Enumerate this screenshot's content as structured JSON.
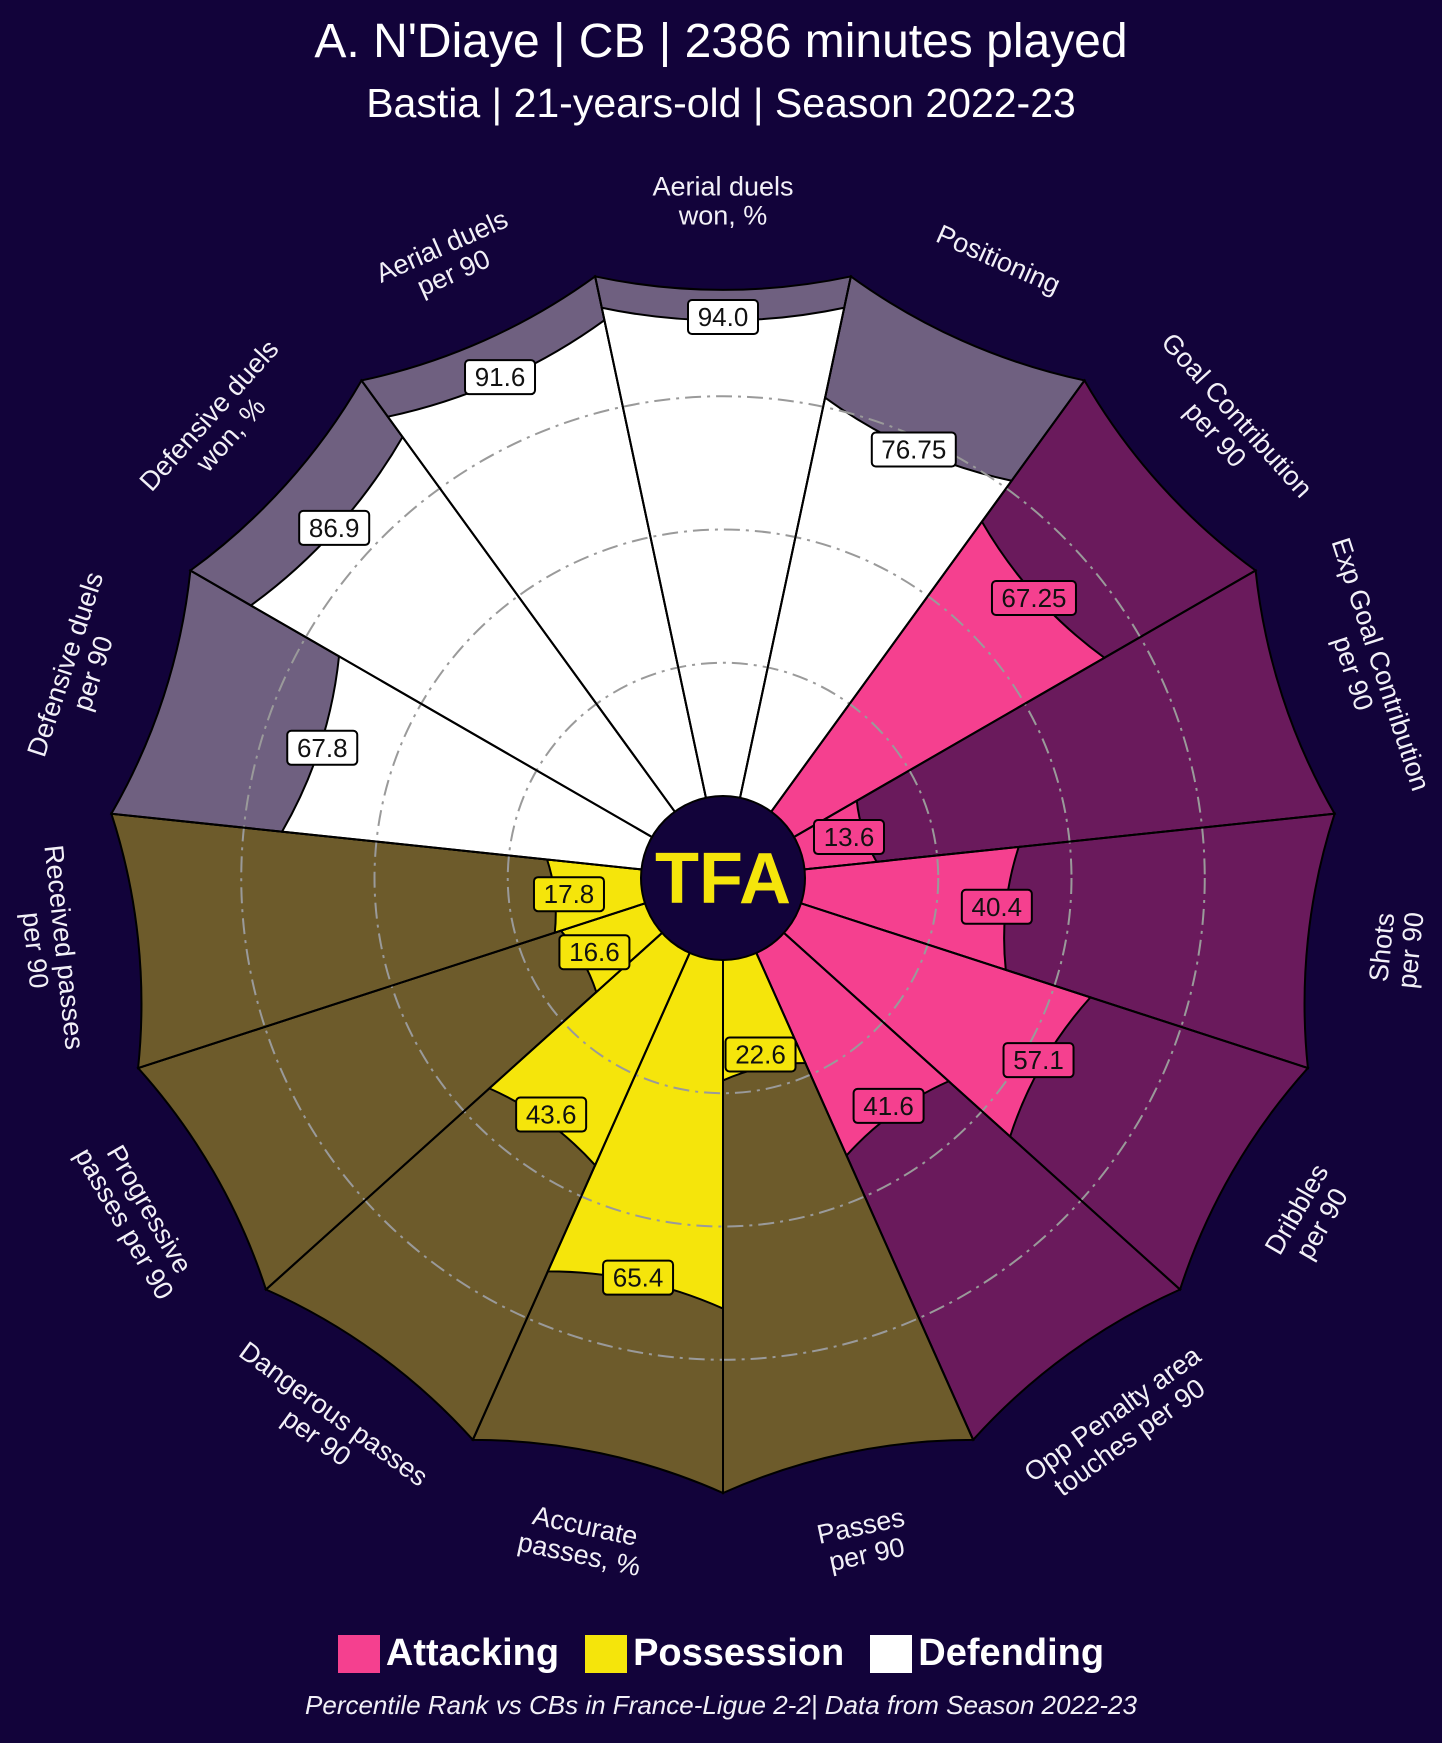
{
  "title": "A. N'Diaye | CB | 2386 minutes played",
  "subtitle": "Bastia | 21-years-old | Season 2022-23",
  "logo_text": "TFA",
  "footnote": "Percentile Rank vs CBs in France-Ligue 2-2| Data from Season 2022-23",
  "colors": {
    "background": "#12033a",
    "attacking": "#f5408f",
    "attacking_bg": "#6a1a5c",
    "possession": "#f5e50b",
    "possession_bg": "#6d5b2b",
    "defending": "#ffffff",
    "defending_bg": "#6f6080",
    "logo_bg": "#12033a",
    "logo_text": "#f5e50b"
  },
  "legend": [
    {
      "label": "Attacking",
      "color": "#f5408f"
    },
    {
      "label": "Possession",
      "color": "#f5e50b"
    },
    {
      "label": "Defending",
      "color": "#ffffff"
    }
  ],
  "chart_data": {
    "type": "radial-bar",
    "ylim": [
      0,
      100
    ],
    "grid": "dash-dot rings at 25, 50, 75",
    "categories": [
      {
        "label": [
          "Goal Contribution",
          "per 90"
        ],
        "value": 67.25,
        "value_label": "67.25",
        "group": "attacking"
      },
      {
        "label": [
          "Exp Goal Contribution",
          "per 90"
        ],
        "value": 13.6,
        "value_label": "13.6",
        "group": "attacking"
      },
      {
        "label": [
          "Shots",
          "per 90"
        ],
        "value": 40.4,
        "value_label": "40.4",
        "group": "attacking"
      },
      {
        "label": [
          "Dribbles",
          "per 90"
        ],
        "value": 57.1,
        "value_label": "57.1",
        "group": "attacking"
      },
      {
        "label": [
          "Opp Penalty area",
          "touches per 90"
        ],
        "value": 41.6,
        "value_label": "41.6",
        "group": "attacking"
      },
      {
        "label": [
          "Passes",
          "per 90"
        ],
        "value": 22.6,
        "value_label": "22.6",
        "group": "possession"
      },
      {
        "label": [
          "Accurate",
          "passes, %"
        ],
        "value": 65.4,
        "value_label": "65.4",
        "group": "possession"
      },
      {
        "label": [
          "Dangerous passes",
          "per 90"
        ],
        "value": 43.6,
        "value_label": "43.6",
        "group": "possession"
      },
      {
        "label": [
          "Progressive",
          "passes per 90"
        ],
        "value": 16.6,
        "value_label": "16.6",
        "group": "possession"
      },
      {
        "label": [
          "Received passes",
          "per 90"
        ],
        "value": 17.8,
        "value_label": "17.8",
        "group": "possession"
      },
      {
        "label": [
          "Defensive duels",
          "per 90"
        ],
        "value": 67.8,
        "value_label": "67.8",
        "group": "defending"
      },
      {
        "label": [
          "Defensive duels",
          "won, %"
        ],
        "value": 86.9,
        "value_label": "86.9",
        "group": "defending"
      },
      {
        "label": [
          "Aerial duels",
          "per 90"
        ],
        "value": 91.6,
        "value_label": "91.6",
        "group": "defending"
      },
      {
        "label": [
          "Aerial duels",
          "won, %"
        ],
        "value": 94.0,
        "value_label": "94.0",
        "group": "defending"
      },
      {
        "label": [
          "Positioning"
        ],
        "value": 76.75,
        "value_label": "76.75",
        "group": "defending"
      }
    ]
  }
}
